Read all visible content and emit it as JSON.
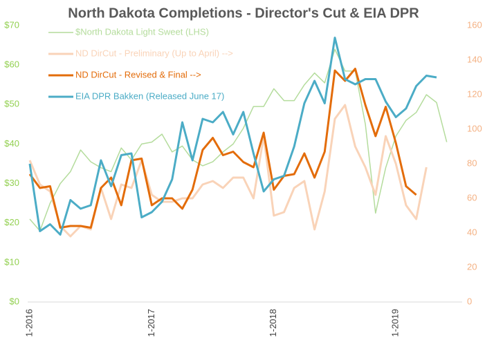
{
  "chart_data": {
    "type": "line",
    "title": "North Dakota Completions - Director's Cut & EIA DPR",
    "categories": [
      "1-2016",
      null,
      null,
      null,
      null,
      null,
      null,
      null,
      null,
      null,
      null,
      null,
      "1-2017",
      null,
      null,
      null,
      null,
      null,
      null,
      null,
      null,
      null,
      null,
      null,
      "1-2018",
      null,
      null,
      null,
      null,
      null,
      null,
      null,
      null,
      null,
      null,
      null,
      "1-2019",
      null,
      null,
      null,
      null,
      null
    ],
    "ylim": [
      0,
      70
    ],
    "yticks": [
      {
        "value": 0,
        "label": "$0"
      },
      {
        "value": 10,
        "label": "$10"
      },
      {
        "value": 20,
        "label": "$20"
      },
      {
        "value": 30,
        "label": "$30"
      },
      {
        "value": 40,
        "label": "$40"
      },
      {
        "value": 50,
        "label": "$50"
      },
      {
        "value": 60,
        "label": "$60"
      },
      {
        "value": 70,
        "label": "$70"
      }
    ],
    "y2lim": [
      0,
      160
    ],
    "y2ticks": [
      0,
      20,
      40,
      60,
      80,
      100,
      120,
      140,
      160
    ],
    "legend": "top-left",
    "series": [
      {
        "name": "$North Dakota Light Sweet (LHS)",
        "color": "#b4dc9c",
        "axis": "y",
        "values": [
          21,
          18,
          25,
          30,
          33,
          38.5,
          35.5,
          34,
          33,
          39,
          36,
          40,
          40.5,
          42.5,
          38,
          39.5,
          36,
          34.5,
          35.5,
          38,
          40,
          44,
          49.5,
          49.5,
          54,
          51,
          51,
          55,
          58,
          55.5,
          64,
          58.5,
          58.5,
          45,
          22.5,
          34,
          42,
          46,
          48,
          52.5,
          50.5,
          40.5
        ]
      },
      {
        "name": "ND DirCut - Preliminary (Up to April)  -->",
        "color": "#f9d3b8",
        "axis": "y2",
        "values": [
          82,
          68,
          64,
          44,
          38,
          44,
          42,
          66,
          48,
          68,
          66,
          82,
          62,
          58,
          58,
          60,
          60,
          68,
          70,
          66,
          72,
          72,
          60,
          96,
          50,
          52,
          66,
          70,
          42,
          64,
          106,
          114,
          90,
          78,
          62,
          96,
          80,
          56,
          48,
          78,
          null,
          null
        ]
      },
      {
        "name": "ND DirCut - Revised & Final -->",
        "color": "#e36c0a",
        "axis": "y2",
        "values": [
          74,
          66,
          67,
          43,
          44,
          44,
          43,
          66,
          72,
          56,
          82,
          83,
          56,
          60,
          60,
          54,
          65,
          88,
          95,
          85,
          87,
          81,
          78,
          98,
          65,
          73,
          74,
          86,
          72,
          87,
          134,
          128,
          135,
          114,
          96,
          113,
          92,
          67,
          62,
          null,
          null,
          null
        ]
      },
      {
        "name": "EIA DPR Bakken (Released June 17)",
        "color": "#4bacc6",
        "axis": "y2",
        "values": [
          80,
          41,
          45,
          39,
          59,
          54,
          56,
          82,
          67,
          85,
          86,
          49,
          52,
          58,
          71,
          104,
          82,
          106,
          104,
          110,
          97,
          110,
          86,
          64,
          71,
          73,
          90,
          115,
          128,
          115,
          153,
          129,
          126,
          129,
          129,
          116,
          107,
          112,
          125,
          131,
          130,
          null
        ]
      }
    ]
  }
}
